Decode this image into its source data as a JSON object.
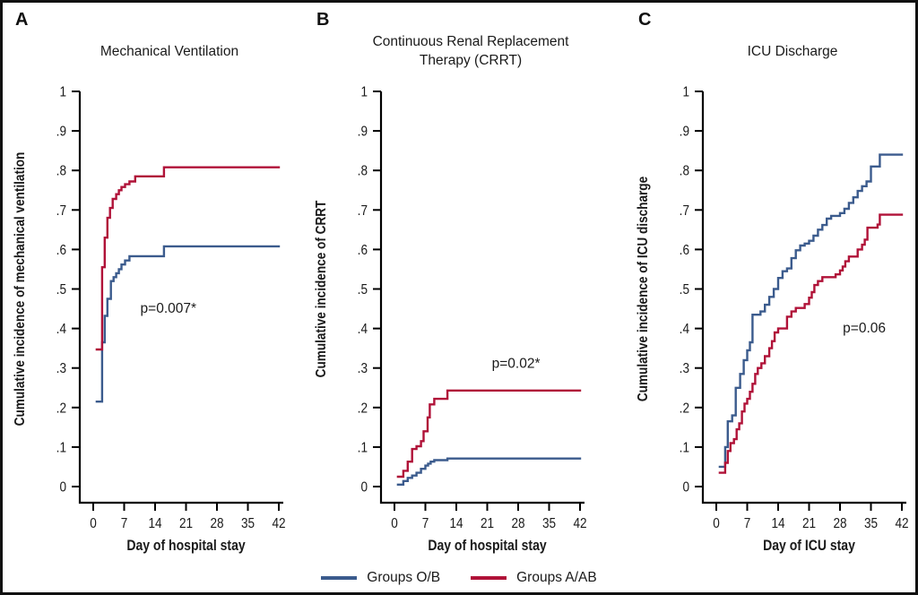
{
  "legend": {
    "items": [
      {
        "label": "Groups O/B",
        "color": "#3b5b8d"
      },
      {
        "label": "Groups A/AB",
        "color": "#b01238"
      }
    ]
  },
  "colors": {
    "axis": "#000000",
    "text": "#1a1a1a",
    "background": "#ffffff"
  },
  "chart_data": [
    {
      "type": "line",
      "line_style": "step-after",
      "panel_label": "A",
      "title": "Mechanical Ventilation",
      "xlabel": "Day of hospital stay",
      "ylabel": "Cumulative incidence of mechanical ventilation",
      "annotation": {
        "text": "p=0.007*",
        "x": 17,
        "y": 0.44
      },
      "xlim": [
        0,
        42
      ],
      "ylim": [
        0,
        1
      ],
      "x_ticks": [
        0,
        7,
        14,
        21,
        28,
        35,
        42
      ],
      "y_ticks": [
        [
          0,
          "0"
        ],
        [
          0.1,
          ".1"
        ],
        [
          0.2,
          ".2"
        ],
        [
          0.3,
          ".3"
        ],
        [
          0.4,
          ".4"
        ],
        [
          0.5,
          ".5"
        ],
        [
          0.6,
          ".6"
        ],
        [
          0.7,
          ".7"
        ],
        [
          0.8,
          ".8"
        ],
        [
          0.9,
          ".9"
        ],
        [
          1,
          "1"
        ]
      ],
      "grid": false,
      "series": [
        {
          "name": "Groups O/B",
          "color": "#3b5b8d",
          "points": [
            [
              0.8,
              0.215
            ],
            [
              2,
              0.365
            ],
            [
              2.6,
              0.432
            ],
            [
              3.2,
              0.475
            ],
            [
              4,
              0.52
            ],
            [
              4.6,
              0.53
            ],
            [
              5.2,
              0.54
            ],
            [
              5.8,
              0.55
            ],
            [
              6.4,
              0.562
            ],
            [
              7.2,
              0.572
            ],
            [
              8.2,
              0.583
            ],
            [
              16,
              0.608
            ],
            [
              42,
              0.608
            ]
          ]
        },
        {
          "name": "Groups A/AB",
          "color": "#b01238",
          "points": [
            [
              0.8,
              0.347
            ],
            [
              2,
              0.555
            ],
            [
              2.6,
              0.63
            ],
            [
              3.2,
              0.68
            ],
            [
              3.8,
              0.705
            ],
            [
              4.4,
              0.728
            ],
            [
              5.2,
              0.74
            ],
            [
              5.8,
              0.75
            ],
            [
              6.4,
              0.758
            ],
            [
              7.2,
              0.765
            ],
            [
              8.2,
              0.772
            ],
            [
              9.5,
              0.785
            ],
            [
              16,
              0.808
            ],
            [
              42,
              0.808
            ]
          ]
        }
      ]
    },
    {
      "type": "line",
      "line_style": "step-after",
      "panel_label": "B",
      "title": "Continuous Renal Replacement Therapy (CRRT)",
      "xlabel": "Day of hospital stay",
      "ylabel": "Cumulative incidence of CRRT",
      "annotation": {
        "text": "p=0.02*",
        "x": 27.5,
        "y": 0.3
      },
      "xlim": [
        0,
        42
      ],
      "ylim": [
        0,
        1
      ],
      "x_ticks": [
        0,
        7,
        14,
        21,
        28,
        35,
        42
      ],
      "y_ticks": [
        [
          0,
          "0"
        ],
        [
          0.1,
          ".1"
        ],
        [
          0.2,
          ".2"
        ],
        [
          0.3,
          ".3"
        ],
        [
          0.4,
          ".4"
        ],
        [
          0.5,
          ".5"
        ],
        [
          0.6,
          ".6"
        ],
        [
          0.7,
          ".7"
        ],
        [
          0.8,
          ".8"
        ],
        [
          0.9,
          ".9"
        ],
        [
          1,
          "1"
        ]
      ],
      "grid": false,
      "series": [
        {
          "name": "Groups O/B",
          "color": "#3b5b8d",
          "points": [
            [
              0.8,
              0.005
            ],
            [
              2,
              0.014
            ],
            [
              3,
              0.022
            ],
            [
              4,
              0.028
            ],
            [
              5,
              0.035
            ],
            [
              6,
              0.045
            ],
            [
              7,
              0.053
            ],
            [
              7.6,
              0.058
            ],
            [
              8.2,
              0.063
            ],
            [
              9,
              0.067
            ],
            [
              12,
              0.071
            ],
            [
              42,
              0.071
            ]
          ]
        },
        {
          "name": "Groups A/AB",
          "color": "#b01238",
          "points": [
            [
              0.8,
              0.025
            ],
            [
              2,
              0.04
            ],
            [
              3,
              0.063
            ],
            [
              4,
              0.095
            ],
            [
              5,
              0.102
            ],
            [
              6,
              0.115
            ],
            [
              6.6,
              0.14
            ],
            [
              7.5,
              0.175
            ],
            [
              8,
              0.208
            ],
            [
              9,
              0.222
            ],
            [
              12,
              0.243
            ],
            [
              42,
              0.243
            ]
          ]
        }
      ]
    },
    {
      "type": "line",
      "line_style": "step-after",
      "panel_label": "C",
      "title": "ICU Discharge",
      "xlabel": "Day of ICU stay",
      "ylabel": "Cumulative incidence of ICU discharge",
      "annotation": {
        "text": "p=0.06",
        "x": 33.5,
        "y": 0.39
      },
      "xlim": [
        0,
        42
      ],
      "ylim": [
        0,
        1
      ],
      "x_ticks": [
        0,
        7,
        14,
        21,
        28,
        35,
        42
      ],
      "y_ticks": [
        [
          0,
          "0"
        ],
        [
          0.1,
          ".1"
        ],
        [
          0.2,
          ".2"
        ],
        [
          0.3,
          ".3"
        ],
        [
          0.4,
          ".4"
        ],
        [
          0.5,
          ".5"
        ],
        [
          0.6,
          ".6"
        ],
        [
          0.7,
          ".7"
        ],
        [
          0.8,
          ".8"
        ],
        [
          0.9,
          ".9"
        ],
        [
          1,
          "1"
        ]
      ],
      "grid": false,
      "series": [
        {
          "name": "Groups O/B",
          "color": "#3b5b8d",
          "points": [
            [
              0.8,
              0.05
            ],
            [
              2,
              0.1
            ],
            [
              2.6,
              0.165
            ],
            [
              3.6,
              0.18
            ],
            [
              4.4,
              0.25
            ],
            [
              5.4,
              0.285
            ],
            [
              6.2,
              0.32
            ],
            [
              7,
              0.345
            ],
            [
              7.6,
              0.365
            ],
            [
              8.2,
              0.435
            ],
            [
              10,
              0.443
            ],
            [
              11,
              0.46
            ],
            [
              12,
              0.48
            ],
            [
              13,
              0.5
            ],
            [
              14,
              0.528
            ],
            [
              15,
              0.545
            ],
            [
              16,
              0.552
            ],
            [
              17,
              0.578
            ],
            [
              18,
              0.598
            ],
            [
              19,
              0.61
            ],
            [
              20,
              0.615
            ],
            [
              21,
              0.622
            ],
            [
              22,
              0.635
            ],
            [
              23,
              0.65
            ],
            [
              24,
              0.662
            ],
            [
              25,
              0.678
            ],
            [
              26,
              0.685
            ],
            [
              28,
              0.692
            ],
            [
              29,
              0.703
            ],
            [
              30,
              0.718
            ],
            [
              31,
              0.732
            ],
            [
              32,
              0.748
            ],
            [
              33,
              0.76
            ],
            [
              34,
              0.772
            ],
            [
              35,
              0.81
            ],
            [
              37,
              0.84
            ],
            [
              42,
              0.84
            ]
          ]
        },
        {
          "name": "Groups A/AB",
          "color": "#b01238",
          "points": [
            [
              0.8,
              0.035
            ],
            [
              2,
              0.06
            ],
            [
              2.6,
              0.09
            ],
            [
              3.2,
              0.11
            ],
            [
              4,
              0.12
            ],
            [
              4.6,
              0.145
            ],
            [
              5.2,
              0.16
            ],
            [
              5.8,
              0.19
            ],
            [
              6.4,
              0.21
            ],
            [
              7,
              0.222
            ],
            [
              7.6,
              0.24
            ],
            [
              8.2,
              0.26
            ],
            [
              8.8,
              0.285
            ],
            [
              9.4,
              0.3
            ],
            [
              10.2,
              0.312
            ],
            [
              11,
              0.33
            ],
            [
              12,
              0.35
            ],
            [
              12.6,
              0.368
            ],
            [
              13.2,
              0.39
            ],
            [
              14,
              0.4
            ],
            [
              16,
              0.43
            ],
            [
              17,
              0.443
            ],
            [
              18,
              0.452
            ],
            [
              20,
              0.462
            ],
            [
              21,
              0.478
            ],
            [
              21.6,
              0.492
            ],
            [
              22.2,
              0.51
            ],
            [
              23,
              0.52
            ],
            [
              24,
              0.53
            ],
            [
              27,
              0.537
            ],
            [
              28,
              0.547
            ],
            [
              28.6,
              0.557
            ],
            [
              29.2,
              0.57
            ],
            [
              30,
              0.582
            ],
            [
              32,
              0.6
            ],
            [
              33,
              0.612
            ],
            [
              33.6,
              0.625
            ],
            [
              34.2,
              0.655
            ],
            [
              36.5,
              0.663
            ],
            [
              37,
              0.688
            ],
            [
              42,
              0.688
            ]
          ]
        }
      ]
    }
  ]
}
